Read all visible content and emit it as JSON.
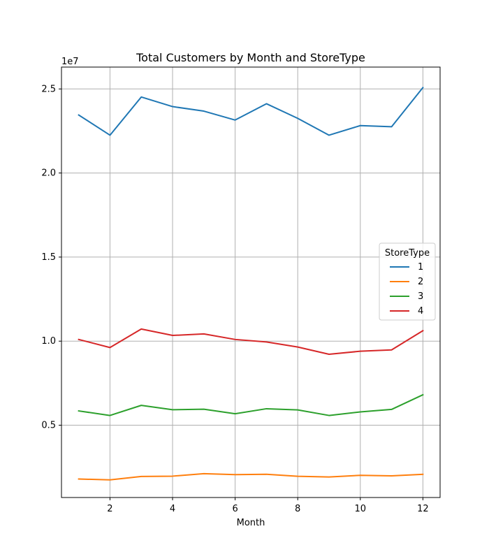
{
  "chart_data": {
    "type": "line",
    "title": "Total Customers by Month and StoreType",
    "xlabel": "Month",
    "ylabel": "",
    "y_scale_label": "1e7",
    "x": [
      1,
      2,
      3,
      4,
      5,
      6,
      7,
      8,
      9,
      10,
      11,
      12
    ],
    "x_ticks": [
      2,
      4,
      6,
      8,
      10,
      12
    ],
    "x_tick_labels": [
      "2",
      "4",
      "6",
      "8",
      "10",
      "12"
    ],
    "y_ticks": [
      5000000,
      10000000,
      15000000,
      20000000,
      25000000
    ],
    "y_tick_labels": [
      "0.5",
      "1.0",
      "1.5",
      "2.0",
      "2.5"
    ],
    "xlim": [
      0.45,
      12.55
    ],
    "ylim": [
      700000,
      26300000
    ],
    "grid": true,
    "legend": {
      "title": "StoreType",
      "placement": "center-right"
    },
    "series": [
      {
        "name": "1",
        "color": "#1f77b4",
        "values": [
          23450000,
          22250000,
          24520000,
          23950000,
          23680000,
          23150000,
          24120000,
          23250000,
          22250000,
          22820000,
          22750000,
          25080000
        ]
      },
      {
        "name": "2",
        "color": "#ff7f0e",
        "values": [
          1800000,
          1750000,
          1950000,
          1970000,
          2120000,
          2060000,
          2080000,
          1960000,
          1920000,
          2020000,
          1990000,
          2080000
        ]
      },
      {
        "name": "3",
        "color": "#2ca02c",
        "values": [
          5850000,
          5580000,
          6180000,
          5920000,
          5950000,
          5680000,
          5980000,
          5910000,
          5580000,
          5790000,
          5940000,
          6810000
        ]
      },
      {
        "name": "4",
        "color": "#d62728",
        "values": [
          10100000,
          9620000,
          10720000,
          10340000,
          10430000,
          10100000,
          9950000,
          9650000,
          9220000,
          9400000,
          9480000,
          10620000
        ]
      }
    ]
  }
}
